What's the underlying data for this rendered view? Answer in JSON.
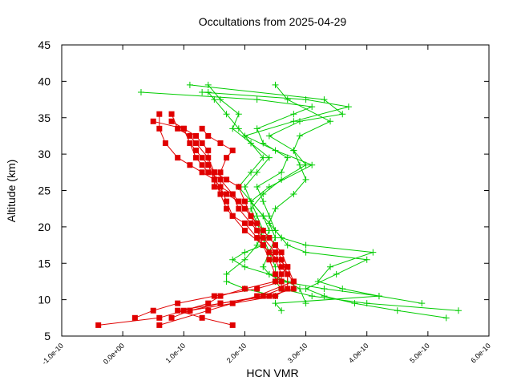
{
  "chart_data": {
    "type": "line",
    "title": "Occultations from 2025-04-29",
    "xlabel": "HCN VMR",
    "ylabel": "Altitude (km)",
    "xlim": [
      -1e-10,
      6e-10
    ],
    "ylim": [
      5,
      45
    ],
    "xticks": [
      -1e-10,
      0.0,
      1e-10,
      2e-10,
      3e-10,
      4e-10,
      5e-10,
      6e-10
    ],
    "xtick_labels": [
      "-1.0e-10",
      "0.0e+00",
      "1.0e-10",
      "2.0e-10",
      "3.0e-10",
      "4.0e-10",
      "5.0e-10",
      "6.0e-10"
    ],
    "yticks": [
      5,
      10,
      15,
      20,
      25,
      30,
      35,
      40,
      45
    ],
    "ytick_labels": [
      "5",
      "10",
      "15",
      "20",
      "25",
      "30",
      "35",
      "40",
      "45"
    ],
    "grid": false,
    "legend": "none",
    "colors": {
      "red": "#e00000",
      "green": "#00cc00"
    },
    "series": [
      {
        "color": "#00cc00",
        "marker": "plus",
        "x": [
          2.6e-10,
          2.5e-10,
          4.2e-10,
          3.3e-10,
          2.6e-10,
          2.4e-10,
          2.3e-10,
          2.4e-10,
          2.5e-10,
          2.4e-10,
          2.5e-10,
          2.8e-10,
          3e-10,
          2.9e-10,
          2.8e-10,
          2.9e-10,
          3.4e-10,
          2.7e-10,
          2.5e-10
        ],
        "y": [
          8.5,
          9.5,
          10.5,
          11.5,
          12.5,
          13.5,
          14.5,
          16.5,
          18.5,
          20.5,
          22.5,
          24.5,
          26.5,
          28.5,
          30.5,
          32.5,
          34.5,
          37.5,
          39.5
        ]
      },
      {
        "color": "#00cc00",
        "marker": "plus",
        "x": [
          5.5e-10,
          4e-10,
          3.1e-10,
          2.6e-10,
          2.5e-10,
          2.5e-10,
          2.4e-10,
          2.3e-10,
          2.2e-10,
          2.1e-10,
          2.3e-10,
          2.6e-10,
          3e-10,
          2.8e-10,
          2.4e-10,
          2.9e-10,
          3.6e-10,
          3.3e-10,
          1.1e-10
        ],
        "y": [
          8.5,
          9.5,
          10.5,
          11.5,
          12.5,
          14.5,
          16.5,
          18.5,
          20.5,
          22.5,
          24.5,
          26.5,
          28.5,
          30.5,
          32.5,
          34.5,
          35.5,
          37.5,
          39.5
        ]
      },
      {
        "color": "#00cc00",
        "marker": "plus",
        "x": [
          5.3e-10,
          4.5e-10,
          3.8e-10,
          3.3e-10,
          3e-10,
          3.5e-10,
          4e-10,
          3e-10,
          2.7e-10,
          2.6e-10,
          2.5e-10,
          2.3e-10,
          2.1e-10,
          2.4e-10,
          3.1e-10,
          2.5e-10,
          2e-10,
          2.8e-10,
          3.7e-10,
          3e-10,
          1.3e-10
        ],
        "y": [
          7.5,
          8.5,
          9.5,
          10.5,
          11.5,
          13.5,
          15.5,
          16.5,
          17.5,
          18.5,
          19.5,
          21.5,
          23.5,
          25.5,
          28.5,
          30.5,
          32.5,
          34.5,
          36.5,
          37.5,
          38.5
        ]
      },
      {
        "color": "#00cc00",
        "marker": "plus",
        "x": [
          4.9e-10,
          4.2e-10,
          3.6e-10,
          3.2e-10,
          3.4e-10,
          4.1e-10,
          3e-10,
          2.6e-10,
          2.5e-10,
          2.4e-10,
          2.3e-10,
          2.2e-10,
          2.6e-10,
          2.7e-10,
          2.3e-10,
          2.2e-10,
          2.8e-10,
          3.1e-10,
          2.2e-10,
          3e-11
        ],
        "y": [
          9.5,
          10.5,
          11.5,
          12.5,
          14.5,
          16.5,
          17.5,
          18.5,
          19.5,
          21.5,
          23.5,
          25.5,
          27.5,
          29.5,
          31.5,
          33.5,
          35.5,
          36.5,
          37.5,
          38.5
        ]
      },
      {
        "color": "#00cc00",
        "marker": "plus",
        "x": [
          3e-10,
          2.9e-10,
          2.7e-10,
          2.4e-10,
          2e-10,
          1.8e-10,
          2e-10,
          2.3e-10,
          2.4e-10,
          2.3e-10,
          2.1e-10,
          2e-10,
          2.2e-10,
          2.4e-10,
          2.1e-10,
          1.8e-10,
          1.9e-10,
          1.6e-10,
          1.4e-10
        ],
        "y": [
          9.5,
          11.5,
          12.5,
          13.5,
          14.5,
          15.5,
          16.5,
          17.5,
          19.5,
          21.5,
          23.5,
          25.5,
          27.5,
          29.5,
          31.5,
          33.5,
          35.5,
          37.5,
          39.5
        ]
      },
      {
        "color": "#00cc00",
        "marker": "plus",
        "x": [
          2.5e-10,
          2e-10,
          1.7e-10,
          1.7e-10,
          2e-10,
          2.2e-10,
          2.3e-10,
          2.2e-10,
          2.1e-10,
          1.9e-10,
          2.1e-10,
          2.3e-10,
          2.1e-10,
          1.9e-10,
          1.7e-10,
          1.5e-10,
          1.4e-10
        ],
        "y": [
          10.5,
          11.5,
          12.5,
          13.5,
          15.5,
          17.5,
          19.5,
          21.5,
          23.5,
          25.5,
          27.5,
          29.5,
          31.5,
          33.5,
          35.5,
          37.5,
          38.5
        ]
      },
      {
        "color": "#e00000",
        "marker": "square",
        "x": [
          -4e-11,
          6e-11,
          1e-10,
          1.4e-10,
          1.6e-10,
          2e-10,
          2.5e-10,
          2.7e-10,
          2.6e-10,
          2.4e-10,
          2.2e-10,
          2e-10,
          1.9e-10,
          1.8e-10,
          1.6e-10,
          1.5e-10,
          1.3e-10,
          1.1e-10,
          9e-11,
          7e-11,
          6e-11,
          6e-11
        ],
        "y": [
          6.5,
          7.5,
          8.5,
          9.5,
          10.5,
          11.5,
          12.5,
          14.5,
          16.5,
          18.5,
          20.5,
          22.5,
          23.5,
          24.5,
          25.5,
          26.5,
          27.5,
          28.5,
          29.5,
          31.5,
          33.5,
          35.5
        ]
      },
      {
        "color": "#e00000",
        "marker": "square",
        "x": [
          1.8e-10,
          1.3e-10,
          9e-11,
          1.6e-10,
          2.4e-10,
          2.8e-10,
          2.8e-10,
          2.6e-10,
          2.5e-10,
          2.3e-10,
          2.1e-10,
          1.9e-10,
          1.8e-10,
          1.6e-10,
          1.4e-10,
          1.3e-10,
          1.2e-10,
          1.1e-10,
          1e-10,
          8e-11
        ],
        "y": [
          6.5,
          7.5,
          8.5,
          9.5,
          10.5,
          11.5,
          12.5,
          14.5,
          16.5,
          18.5,
          20.5,
          22.5,
          24.5,
          26.5,
          27.5,
          28.5,
          29.5,
          31.5,
          33.5,
          34.5
        ]
      },
      {
        "color": "#e00000",
        "marker": "square",
        "x": [
          2e-11,
          5e-11,
          9e-11,
          1.5e-10,
          2.2e-10,
          2.6e-10,
          2.5e-10,
          2.4e-10,
          2.3e-10,
          2.2e-10,
          2.1e-10,
          2e-10,
          1.9e-10,
          1.7e-10,
          1.5e-10,
          1.4e-10,
          1.3e-10,
          1.2e-10,
          1.1e-10,
          1e-10,
          5e-11
        ],
        "y": [
          7.5,
          8.5,
          9.5,
          10.5,
          11.5,
          12.5,
          13.5,
          15.5,
          17.5,
          19.5,
          21.5,
          23.5,
          25.5,
          26.5,
          27.5,
          28.5,
          29.5,
          30.5,
          31.5,
          33.5,
          34.5
        ]
      },
      {
        "color": "#e00000",
        "marker": "square",
        "x": [
          8e-11,
          1.1e-10,
          1.8e-10,
          2.5e-10,
          2.7e-10,
          2.7e-10,
          2.6e-10,
          2.5e-10,
          2.3e-10,
          2.1e-10,
          1.9e-10,
          1.7e-10,
          1.5e-10,
          1.5e-10,
          1.4e-10,
          1.2e-10,
          1.1e-10,
          9e-11,
          8e-11
        ],
        "y": [
          7.5,
          8.5,
          9.5,
          10.5,
          11.5,
          13.5,
          15.5,
          17.5,
          19.5,
          21.5,
          23.5,
          24.5,
          25.5,
          27.5,
          29.5,
          31.5,
          32.5,
          33.5,
          35.5
        ]
      },
      {
        "color": "#e00000",
        "marker": "square",
        "x": [
          1.1e-10,
          1.6e-10,
          2.3e-10,
          2.6e-10,
          2.6e-10,
          2.5e-10,
          2.3e-10,
          2e-10,
          1.8e-10,
          1.7e-10,
          1.6e-10,
          1.6e-10,
          1.7e-10,
          1.8e-10,
          1.6e-10,
          1.4e-10,
          1.3e-10
        ],
        "y": [
          8.5,
          9.5,
          10.5,
          11.5,
          13.5,
          15.5,
          17.5,
          19.5,
          21.5,
          23.5,
          25.5,
          27.5,
          29.5,
          30.5,
          31.5,
          32.5,
          33.5
        ]
      },
      {
        "color": "#e00000",
        "marker": "square",
        "x": [
          6e-11,
          1.4e-10,
          2.2e-10,
          2.8e-10,
          2.7e-10,
          2.4e-10,
          2.2e-10,
          2e-10,
          1.8e-10,
          1.7e-10,
          1.6e-10,
          1.5e-10,
          1.4e-10,
          1.4e-10,
          1.3e-10,
          1.2e-10,
          1e-10
        ],
        "y": [
          6.5,
          8.5,
          10.5,
          12.5,
          14.5,
          16.5,
          18.5,
          20.5,
          21.5,
          22.5,
          24.5,
          26.5,
          28.5,
          30.5,
          31.5,
          32.5,
          33.5
        ]
      }
    ]
  }
}
